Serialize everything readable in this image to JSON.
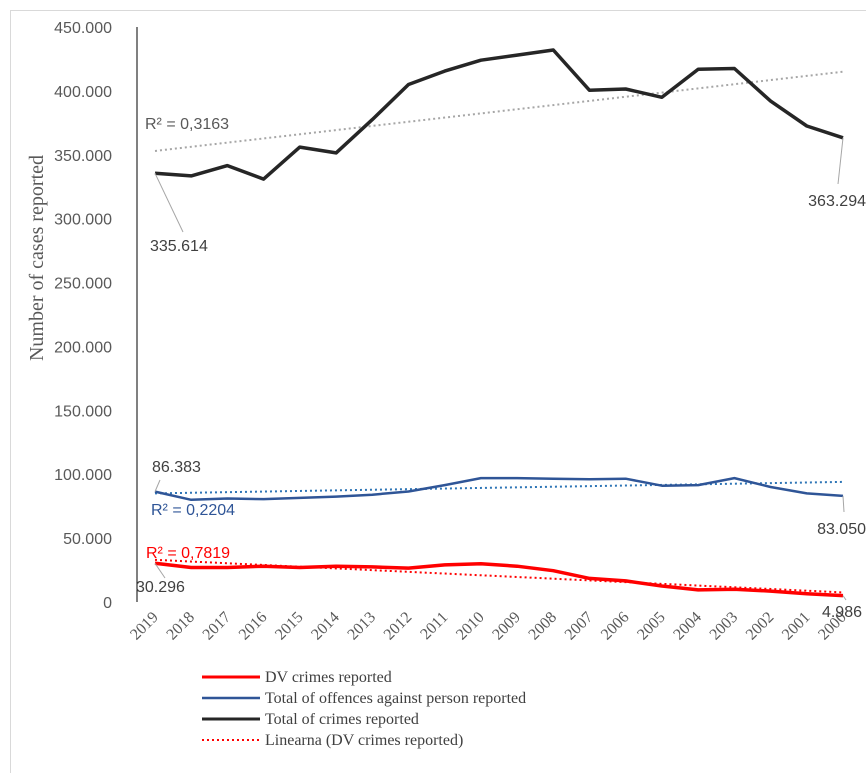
{
  "chart_data": {
    "type": "line",
    "ylabel": "Number of cases reported",
    "ylim": [
      0,
      450000
    ],
    "y_ticks": [
      "0",
      "50.000",
      "100.000",
      "150.000",
      "200.000",
      "250.000",
      "300.000",
      "350.000",
      "400.000",
      "450.000"
    ],
    "categories": [
      "2019",
      "2018",
      "2017",
      "2016",
      "2015",
      "2014",
      "2013",
      "2012",
      "2011",
      "2010",
      "2009",
      "2008",
      "2007",
      "2006",
      "2005",
      "2004",
      "2003",
      "2002",
      "2001",
      "2000"
    ],
    "series": [
      {
        "name": "DV crimes reported",
        "color": "#ff0000",
        "values": [
          30296,
          27000,
          27000,
          28000,
          27000,
          28000,
          27500,
          26500,
          29000,
          30000,
          28000,
          24500,
          18500,
          16500,
          12500,
          9500,
          10000,
          8500,
          6500,
          4986
        ]
      },
      {
        "name": "Total of offences against person reported",
        "color": "#2f5597",
        "values": [
          86383,
          80000,
          81000,
          80500,
          81500,
          82500,
          84000,
          86500,
          91500,
          97000,
          97000,
          96500,
          96000,
          96500,
          91000,
          91500,
          97000,
          90000,
          85000,
          83050
        ]
      },
      {
        "name": "Total of crimes reported",
        "color": "#262626",
        "values": [
          335614,
          333500,
          341500,
          331000,
          356000,
          351500,
          377500,
          405000,
          415500,
          424000,
          428000,
          432000,
          400500,
          401500,
          395000,
          417000,
          417500,
          392000,
          372500,
          363294
        ]
      }
    ],
    "trendlines": [
      {
        "name": "Linearna (DV crimes reported)",
        "color": "#ff0000",
        "start": 33000,
        "end": 7500,
        "r2_label": "R² = 0,7819"
      },
      {
        "name": "",
        "color": "#2e75b6",
        "start": 85000,
        "end": 94000,
        "r2_label": "R² = 0,2204"
      },
      {
        "name": "",
        "color": "#a6a6a6",
        "start": 353000,
        "end": 415000,
        "r2_label": "R² = 0,3163"
      }
    ],
    "data_labels": {
      "dv_first": "30.296",
      "dv_last": "4.986",
      "person_first": "86.383",
      "person_last": "83.050",
      "total_first": "335.614",
      "total_last": "363.294"
    },
    "legend": {
      "position": "bottom",
      "entries": [
        "DV crimes reported",
        "Total of offences against person reported",
        "Total of crimes reported",
        "Linearna (DV crimes reported)"
      ]
    }
  }
}
